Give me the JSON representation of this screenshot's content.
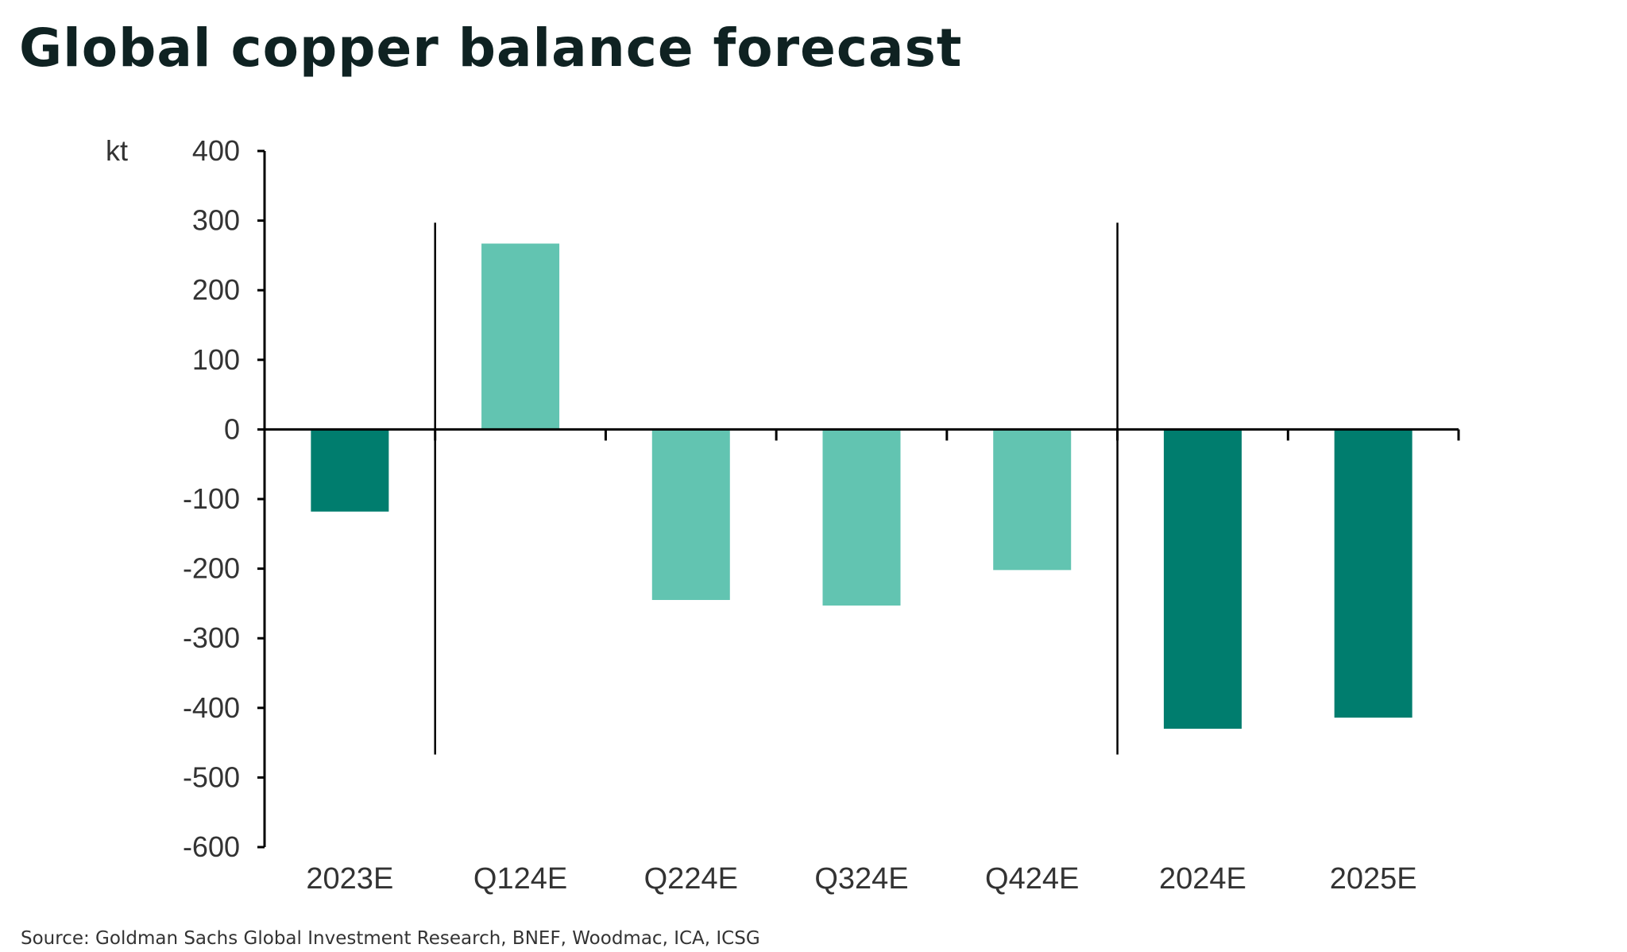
{
  "title": "Global copper balance forecast",
  "source": "Source: Goldman Sachs Global Investment Research, BNEF, Woodmac, ICA, ICSG",
  "chart_data": {
    "type": "bar",
    "title": "Global copper balance forecast",
    "xlabel": "",
    "ylabel": "kt",
    "ylim": [
      -600,
      400
    ],
    "yticks": [
      400,
      300,
      200,
      100,
      0,
      -100,
      -200,
      -300,
      -400,
      -500,
      -600
    ],
    "categories": [
      "2023E",
      "Q124E",
      "Q224E",
      "Q324E",
      "Q424E",
      "2024E",
      "2025E"
    ],
    "values": [
      -118,
      267,
      -245,
      -253,
      -202,
      -430,
      -414
    ],
    "bar_colors": [
      "#007d6e",
      "#62c4b1",
      "#62c4b1",
      "#62c4b1",
      "#62c4b1",
      "#007d6e",
      "#007d6e"
    ],
    "colors": {
      "annual": "#007d6e",
      "quarterly": "#62c4b1",
      "axis": "#000000",
      "text": "#333333"
    },
    "grid": false,
    "legend": "none",
    "separators_after_category_index": [
      0,
      4
    ]
  }
}
